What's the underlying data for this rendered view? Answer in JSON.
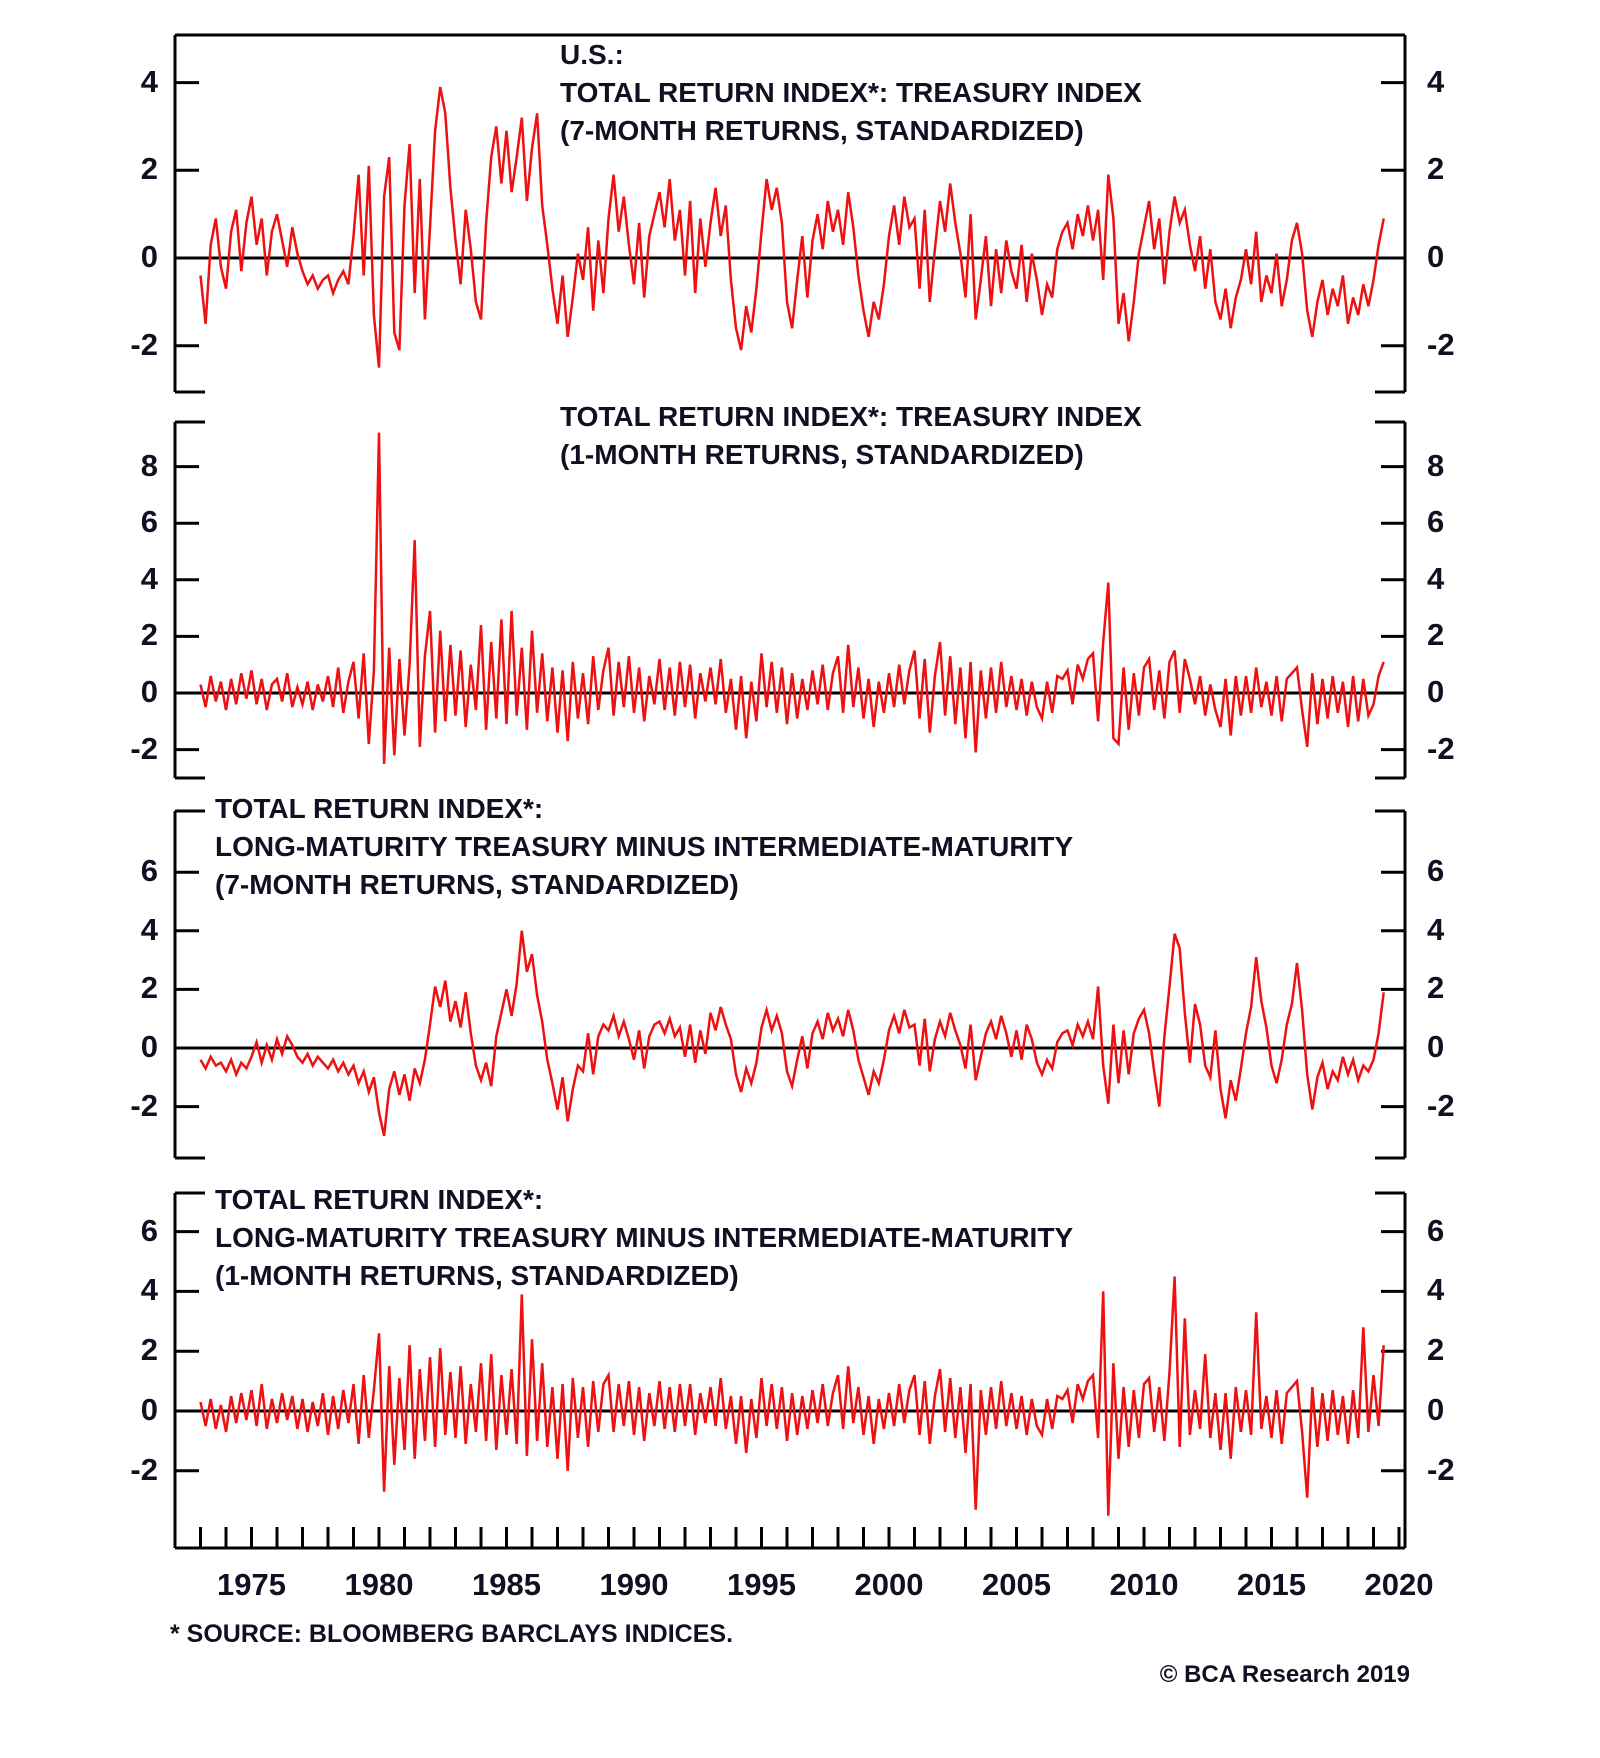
{
  "chart_data": {
    "type": "line",
    "line_color": "#ee1111",
    "axis_color": "#000000",
    "text_color": "#101022",
    "grid": "off",
    "legend": "none",
    "x_axis": {
      "range_years": [
        1972,
        2020.3
      ],
      "tick_labels": [
        1975,
        1980,
        1985,
        1990,
        1995,
        2000,
        2005,
        2010,
        2015,
        2020
      ],
      "minor_tick_interval_years": 1
    },
    "footnote": "* SOURCE: BLOOMBERG BARCLAYS INDICES.",
    "copyright": "© BCA Research 2019",
    "panels": [
      {
        "id": "treasury-7-month",
        "title_lines": [
          "U.S.:",
          "TOTAL RETURN INDEX*: TREASURY INDEX",
          "(7-MONTH RETURNS, STANDARDIZED)"
        ],
        "yticks": [
          4,
          2,
          0,
          -2
        ],
        "ylim": [
          -3.05,
          5.08
        ],
        "series": {
          "name": "Total return index: Treasury index, 7-month returns, standardized",
          "start_year": 1973,
          "step_years": 0.2,
          "values": [
            -0.4,
            -1.5,
            0.3,
            0.9,
            -0.2,
            -0.7,
            0.6,
            1.1,
            -0.3,
            0.8,
            1.4,
            0.3,
            0.9,
            -0.4,
            0.6,
            1.0,
            0.4,
            -0.2,
            0.7,
            0.1,
            -0.3,
            -0.6,
            -0.4,
            -0.7,
            -0.5,
            -0.4,
            -0.8,
            -0.5,
            -0.3,
            -0.6,
            0.5,
            1.9,
            -0.4,
            2.1,
            -1.3,
            -2.5,
            1.4,
            2.3,
            -1.7,
            -2.1,
            1.2,
            2.6,
            -0.8,
            1.8,
            -1.4,
            0.7,
            2.9,
            3.9,
            3.3,
            1.6,
            0.4,
            -0.6,
            1.1,
            0.2,
            -1.0,
            -1.4,
            0.8,
            2.3,
            3.0,
            1.7,
            2.9,
            1.5,
            2.3,
            3.2,
            1.3,
            2.5,
            3.3,
            1.2,
            0.3,
            -0.7,
            -1.5,
            -0.4,
            -1.8,
            -0.9,
            0.1,
            -0.5,
            0.7,
            -1.2,
            0.4,
            -0.8,
            0.9,
            1.9,
            0.6,
            1.4,
            0.3,
            -0.6,
            0.8,
            -0.9,
            0.5,
            1.0,
            1.5,
            0.7,
            1.8,
            0.4,
            1.1,
            -0.4,
            1.3,
            -0.8,
            0.9,
            -0.2,
            0.8,
            1.6,
            0.5,
            1.2,
            -0.5,
            -1.6,
            -2.1,
            -1.1,
            -1.7,
            -0.7,
            0.6,
            1.8,
            1.1,
            1.6,
            0.8,
            -1.0,
            -1.6,
            -0.5,
            0.5,
            -0.9,
            0.4,
            1.0,
            0.2,
            1.3,
            0.6,
            1.1,
            0.3,
            1.5,
            0.7,
            -0.4,
            -1.2,
            -1.8,
            -1.0,
            -1.4,
            -0.6,
            0.5,
            1.2,
            0.3,
            1.4,
            0.7,
            0.9,
            -0.7,
            1.1,
            -1.0,
            0.2,
            1.3,
            0.6,
            1.7,
            0.8,
            0.1,
            -0.9,
            1.0,
            -1.4,
            -0.5,
            0.5,
            -1.1,
            0.2,
            -0.8,
            0.4,
            -0.3,
            -0.7,
            0.3,
            -1.0,
            0.1,
            -0.5,
            -1.3,
            -0.6,
            -0.9,
            0.2,
            0.6,
            0.8,
            0.2,
            1.0,
            0.5,
            1.2,
            0.4,
            1.1,
            -0.5,
            1.9,
            0.9,
            -1.5,
            -0.8,
            -1.9,
            -1.0,
            0.1,
            0.7,
            1.3,
            0.2,
            0.9,
            -0.6,
            0.6,
            1.4,
            0.8,
            1.1,
            0.3,
            -0.3,
            0.5,
            -0.7,
            0.2,
            -1.0,
            -1.4,
            -0.7,
            -1.6,
            -0.9,
            -0.5,
            0.2,
            -0.6,
            0.6,
            -1.0,
            -0.4,
            -0.8,
            0.1,
            -1.1,
            -0.5,
            0.4,
            0.8,
            0.1,
            -1.2,
            -1.8,
            -1.0,
            -0.5,
            -1.3,
            -0.7,
            -1.1,
            -0.4,
            -1.5,
            -0.9,
            -1.3,
            -0.6,
            -1.1,
            -0.5,
            0.3,
            0.9
          ]
        }
      },
      {
        "id": "treasury-1-month",
        "title_lines": [
          "TOTAL RETURN INDEX*: TREASURY INDEX",
          "(1-MONTH RETURNS, STANDARDIZED)"
        ],
        "yticks": [
          8,
          6,
          4,
          2,
          0,
          -2
        ],
        "ylim": [
          -3.0,
          9.58
        ],
        "series": {
          "name": "Total return index: Treasury index, 1-month returns, standardized",
          "start_year": 1973,
          "step_years": 0.2,
          "values": [
            0.3,
            -0.5,
            0.6,
            -0.3,
            0.4,
            -0.6,
            0.5,
            -0.4,
            0.7,
            -0.2,
            0.8,
            -0.4,
            0.5,
            -0.6,
            0.3,
            0.5,
            -0.3,
            0.7,
            -0.5,
            0.2,
            -0.4,
            0.4,
            -0.6,
            0.3,
            -0.3,
            0.6,
            -0.5,
            0.9,
            -0.7,
            0.4,
            1.1,
            -0.9,
            1.4,
            -1.8,
            0.8,
            9.2,
            -2.5,
            1.6,
            -2.2,
            1.2,
            -1.5,
            1.0,
            5.4,
            -1.9,
            1.3,
            2.9,
            -1.4,
            2.2,
            -1.0,
            1.7,
            -0.8,
            1.5,
            -1.2,
            1.0,
            -0.6,
            2.4,
            -1.3,
            1.8,
            -0.9,
            2.6,
            -1.1,
            2.9,
            -0.8,
            1.6,
            -1.3,
            2.2,
            -0.7,
            1.4,
            -1.0,
            0.9,
            -1.4,
            0.8,
            -1.7,
            1.1,
            -0.9,
            0.7,
            -1.1,
            1.3,
            -0.6,
            0.8,
            1.6,
            -0.8,
            1.1,
            -0.5,
            1.3,
            -0.7,
            0.9,
            -1.0,
            0.6,
            -0.4,
            1.2,
            -0.6,
            0.9,
            -0.8,
            1.1,
            -0.5,
            1.0,
            -0.9,
            0.7,
            -0.3,
            0.9,
            -0.4,
            1.2,
            -0.7,
            0.5,
            -1.3,
            0.6,
            -1.6,
            0.4,
            -1.0,
            1.4,
            -0.5,
            1.1,
            -0.7,
            0.9,
            -1.1,
            0.7,
            -0.9,
            0.5,
            -0.6,
            0.8,
            -0.4,
            1.0,
            -0.6,
            0.7,
            1.3,
            -0.7,
            1.7,
            -0.5,
            0.9,
            -0.9,
            0.5,
            -1.2,
            0.4,
            -0.7,
            0.7,
            -0.5,
            1.0,
            -0.4,
            0.8,
            1.5,
            -0.9,
            1.2,
            -1.4,
            0.6,
            1.8,
            -0.8,
            1.3,
            -1.1,
            0.9,
            -1.6,
            1.1,
            -2.1,
            0.8,
            -0.9,
            0.9,
            -0.7,
            1.1,
            -0.5,
            0.6,
            -0.6,
            0.5,
            -0.8,
            0.4,
            -0.5,
            -0.9,
            0.4,
            -0.7,
            0.6,
            0.5,
            0.8,
            -0.4,
            1.0,
            0.5,
            1.2,
            1.4,
            -1.0,
            1.8,
            3.9,
            -1.6,
            -1.8,
            0.9,
            -1.3,
            0.7,
            -0.8,
            0.9,
            1.2,
            -0.6,
            0.8,
            -0.9,
            1.1,
            1.5,
            -0.7,
            1.2,
            0.5,
            -0.4,
            0.6,
            -0.8,
            0.3,
            -0.6,
            -1.2,
            0.5,
            -1.5,
            0.6,
            -0.8,
            0.6,
            -0.7,
            0.9,
            -0.5,
            0.4,
            -0.8,
            0.6,
            -1.0,
            0.5,
            0.7,
            0.9,
            -0.6,
            -1.9,
            0.7,
            -1.1,
            0.5,
            -0.9,
            0.6,
            -0.7,
            0.4,
            -1.2,
            0.6,
            -1.0,
            0.5,
            -0.8,
            -0.4,
            0.6,
            1.1
          ]
        }
      },
      {
        "id": "long-minus-intermediate-7-month",
        "title_lines": [
          "TOTAL RETURN INDEX*:",
          "LONG-MATURITY TREASURY MINUS INTERMEDIATE-MATURITY",
          "(7-MONTH RETURNS, STANDARDIZED)"
        ],
        "yticks": [
          6,
          4,
          2,
          0,
          -2
        ],
        "ylim": [
          -3.75,
          8.09
        ],
        "series": {
          "name": "Long-maturity Treasury minus intermediate-maturity, 7-month returns, standardized",
          "start_year": 1973,
          "step_years": 0.2,
          "values": [
            -0.4,
            -0.7,
            -0.3,
            -0.6,
            -0.5,
            -0.8,
            -0.4,
            -0.9,
            -0.5,
            -0.7,
            -0.3,
            0.2,
            -0.5,
            0.1,
            -0.4,
            0.3,
            -0.2,
            0.4,
            0.1,
            -0.3,
            -0.5,
            -0.2,
            -0.6,
            -0.3,
            -0.5,
            -0.7,
            -0.4,
            -0.8,
            -0.5,
            -0.9,
            -0.6,
            -1.2,
            -0.8,
            -1.5,
            -1.0,
            -2.2,
            -3.0,
            -1.4,
            -0.8,
            -1.6,
            -0.9,
            -1.8,
            -0.7,
            -1.2,
            -0.4,
            0.8,
            2.1,
            1.4,
            2.3,
            0.9,
            1.6,
            0.7,
            1.9,
            0.5,
            -0.6,
            -1.1,
            -0.5,
            -1.3,
            0.4,
            1.2,
            2.0,
            1.1,
            2.2,
            4.0,
            2.6,
            3.2,
            1.8,
            0.9,
            -0.4,
            -1.2,
            -2.1,
            -1.0,
            -2.5,
            -1.4,
            -0.6,
            -0.8,
            0.5,
            -0.9,
            0.4,
            0.8,
            0.6,
            1.1,
            0.4,
            0.9,
            0.3,
            -0.4,
            0.6,
            -0.7,
            0.4,
            0.8,
            0.9,
            0.5,
            1.0,
            0.4,
            0.7,
            -0.3,
            0.8,
            -0.5,
            0.6,
            -0.2,
            1.2,
            0.6,
            1.4,
            0.8,
            0.3,
            -0.9,
            -1.5,
            -0.7,
            -1.2,
            -0.5,
            0.7,
            1.3,
            0.6,
            1.1,
            0.5,
            -0.8,
            -1.3,
            -0.4,
            0.4,
            -0.7,
            0.5,
            0.9,
            0.3,
            1.2,
            0.6,
            1.0,
            0.4,
            1.3,
            0.6,
            -0.4,
            -1.0,
            -1.6,
            -0.8,
            -1.2,
            -0.4,
            0.6,
            1.1,
            0.5,
            1.3,
            0.7,
            0.8,
            -0.6,
            1.0,
            -0.8,
            0.3,
            0.9,
            0.4,
            1.2,
            0.6,
            0.1,
            -0.7,
            0.8,
            -1.1,
            -0.3,
            0.5,
            0.9,
            0.3,
            1.1,
            0.5,
            -0.3,
            0.6,
            -0.4,
            0.8,
            0.3,
            -0.5,
            -0.9,
            -0.4,
            -0.7,
            0.2,
            0.5,
            0.6,
            0.1,
            0.8,
            0.4,
            0.9,
            0.3,
            2.1,
            -0.6,
            -1.9,
            0.8,
            -1.2,
            0.6,
            -0.9,
            0.5,
            1.0,
            1.3,
            0.5,
            -0.8,
            -2.0,
            0.4,
            2.1,
            3.9,
            3.4,
            1.2,
            -0.5,
            1.5,
            0.8,
            -0.6,
            -1.0,
            0.6,
            -1.4,
            -2.4,
            -1.1,
            -1.8,
            -0.7,
            0.5,
            1.4,
            3.1,
            1.6,
            0.7,
            -0.6,
            -1.2,
            -0.4,
            0.8,
            1.5,
            2.9,
            1.3,
            -0.9,
            -2.1,
            -1.0,
            -0.5,
            -1.4,
            -0.8,
            -1.1,
            -0.3,
            -0.9,
            -0.4,
            -1.1,
            -0.6,
            -0.8,
            -0.4,
            0.5,
            1.9
          ]
        }
      },
      {
        "id": "long-minus-intermediate-1-month",
        "title_lines": [
          "TOTAL RETURN INDEX*:",
          "LONG-MATURITY TREASURY MINUS INTERMEDIATE-MATURITY",
          "(1-MONTH RETURNS, STANDARDIZED)"
        ],
        "yticks": [
          6,
          4,
          2,
          0,
          -2
        ],
        "ylim": [
          -4.58,
          7.29
        ],
        "series": {
          "name": "Long-maturity Treasury minus intermediate-maturity, 1-month returns, standardized",
          "start_year": 1973,
          "step_years": 0.2,
          "values": [
            0.3,
            -0.5,
            0.4,
            -0.6,
            0.2,
            -0.7,
            0.5,
            -0.4,
            0.6,
            -0.3,
            0.7,
            -0.5,
            0.9,
            -0.6,
            0.4,
            -0.4,
            0.6,
            -0.3,
            0.5,
            -0.6,
            0.4,
            -0.7,
            0.3,
            -0.5,
            0.6,
            -0.8,
            0.5,
            -0.6,
            0.7,
            -0.4,
            0.9,
            -1.1,
            1.2,
            -0.9,
            0.7,
            2.6,
            -2.7,
            1.5,
            -1.8,
            1.1,
            -1.3,
            2.2,
            -1.6,
            1.4,
            -1.0,
            1.8,
            -1.2,
            2.1,
            -0.8,
            1.3,
            -0.9,
            1.5,
            -1.1,
            0.9,
            -0.7,
            1.6,
            -1.0,
            1.9,
            -1.3,
            1.2,
            -0.8,
            1.4,
            -1.1,
            3.9,
            -1.5,
            2.4,
            -1.0,
            1.6,
            -1.2,
            0.8,
            -1.6,
            0.9,
            -2.0,
            1.1,
            -0.9,
            0.8,
            -1.2,
            1.0,
            -0.7,
            0.9,
            1.2,
            -0.7,
            0.9,
            -0.5,
            1.0,
            -0.8,
            0.8,
            -1.0,
            0.6,
            -0.5,
            1.0,
            -0.6,
            0.8,
            -0.7,
            0.9,
            -0.5,
            0.9,
            -0.8,
            0.6,
            -0.4,
            0.8,
            -0.5,
            1.1,
            -0.6,
            0.5,
            -1.1,
            0.5,
            -1.4,
            0.4,
            -0.9,
            1.1,
            -0.5,
            0.9,
            -0.6,
            0.8,
            -1.0,
            0.6,
            -0.8,
            0.5,
            -0.6,
            0.7,
            -0.4,
            0.9,
            -0.5,
            0.6,
            1.2,
            -0.6,
            1.5,
            -0.4,
            0.8,
            -0.8,
            0.5,
            -1.1,
            0.4,
            -0.6,
            0.6,
            -0.5,
            0.9,
            -0.4,
            0.7,
            1.2,
            -0.8,
            1.0,
            -1.1,
            0.5,
            1.4,
            -0.7,
            1.1,
            -0.9,
            0.8,
            -1.4,
            0.9,
            -3.3,
            0.7,
            -0.8,
            0.8,
            -0.6,
            1.0,
            -0.5,
            0.6,
            -0.6,
            0.5,
            -0.8,
            0.4,
            -0.5,
            -0.8,
            0.4,
            -0.6,
            0.5,
            0.4,
            0.7,
            -0.4,
            0.9,
            0.4,
            1.0,
            1.2,
            -0.9,
            4.0,
            -3.5,
            1.6,
            -1.6,
            0.8,
            -1.2,
            0.7,
            -0.9,
            0.9,
            1.1,
            -0.7,
            0.8,
            -1.0,
            1.3,
            4.5,
            -1.2,
            3.1,
            -0.8,
            0.7,
            -0.6,
            1.9,
            -0.9,
            0.6,
            -1.3,
            0.6,
            -1.6,
            0.8,
            -0.7,
            0.7,
            -0.8,
            3.3,
            -0.6,
            0.5,
            -0.9,
            0.7,
            -1.1,
            0.6,
            0.8,
            1.0,
            -0.7,
            -2.9,
            0.8,
            -1.2,
            0.6,
            -1.0,
            0.7,
            -0.8,
            0.5,
            -1.1,
            0.7,
            -0.9,
            2.8,
            -0.7,
            1.2,
            -0.5,
            2.2
          ]
        }
      }
    ]
  }
}
